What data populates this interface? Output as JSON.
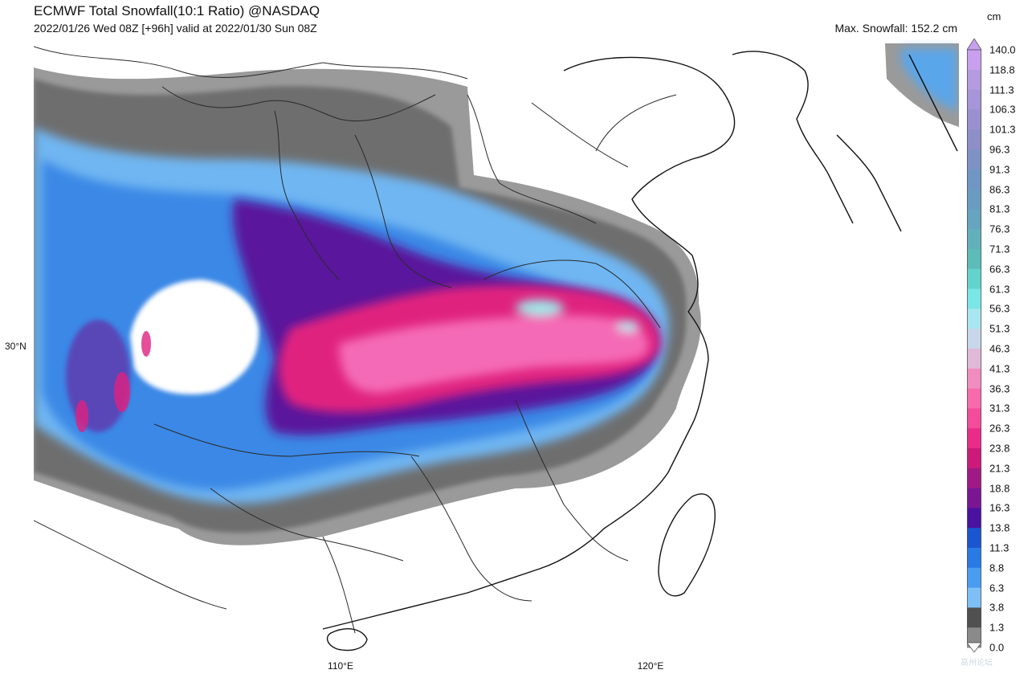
{
  "header": {
    "title": "ECMWF Total Snowfall(10:1 Ratio) @NASDAQ",
    "subtitle": "2022/01/26 Wed 08Z [+96h] valid at 2022/01/30 Sun 08Z",
    "max_snowfall": "Max. Snowfall: 152.2 cm"
  },
  "axes": {
    "lon_ticks": [
      "110°E",
      "120°E"
    ],
    "lat_ticks": [
      "30°N"
    ]
  },
  "colorbar": {
    "units": "cm",
    "labels": [
      "140.0",
      "118.8",
      "111.3",
      "106.3",
      "101.3",
      "96.3",
      "91.3",
      "86.3",
      "81.3",
      "76.3",
      "71.3",
      "66.3",
      "61.3",
      "56.3",
      "51.3",
      "46.3",
      "41.3",
      "36.3",
      "31.3",
      "26.3",
      "23.8",
      "21.3",
      "18.8",
      "16.3",
      "13.8",
      "11.3",
      "8.8",
      "6.3",
      "3.8",
      "1.3",
      "0.0"
    ],
    "colors": [
      "#c9a0f0",
      "#b39be0",
      "#a695d8",
      "#9a90d0",
      "#8e8ec8",
      "#7f92c6",
      "#7096c4",
      "#6a9cc2",
      "#67a4c0",
      "#62b0bc",
      "#5dbcb8",
      "#62d4cc",
      "#7ae6e6",
      "#a8e6f0",
      "#c8d6ea",
      "#e0b8d8",
      "#f08cc0",
      "#f76aac",
      "#f24c9a",
      "#e82c88",
      "#cc1a7a",
      "#a01a86",
      "#7a1694",
      "#4a12a0",
      "#1a56d0",
      "#2a7ae6",
      "#4a9cf0",
      "#7ec0f6",
      "#505050",
      "#8a8a8a",
      "#d0d0d0"
    ]
  },
  "watermark": "高州论坛"
}
